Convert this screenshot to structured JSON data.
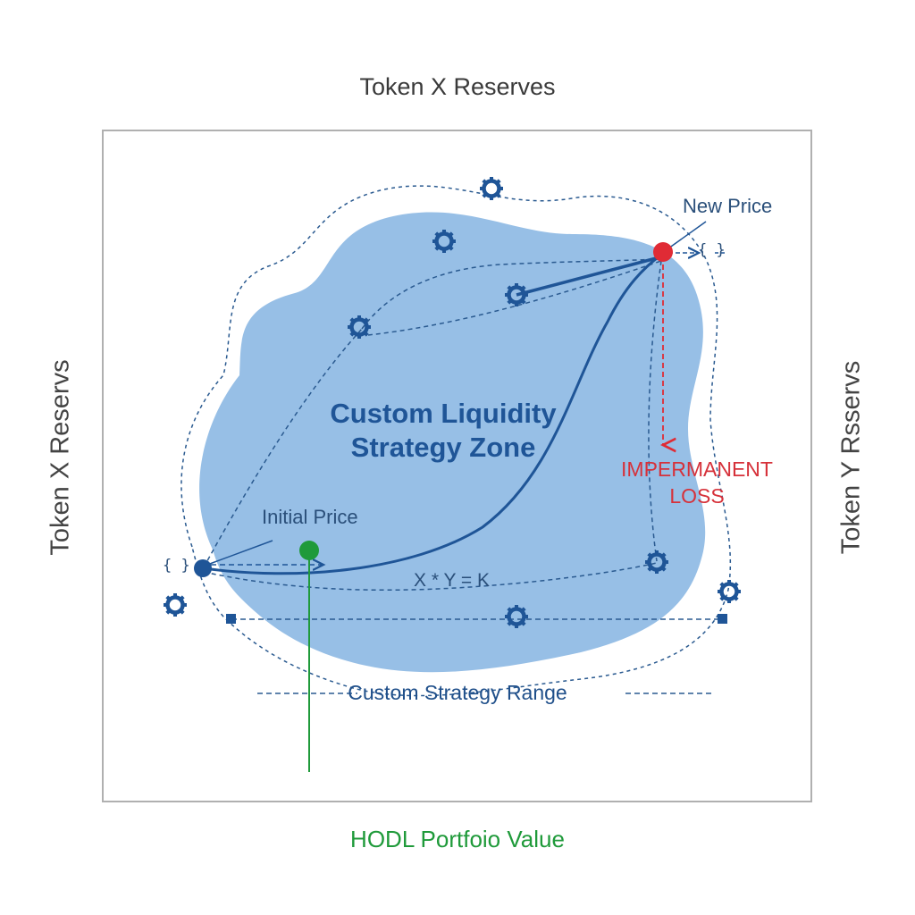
{
  "labels": {
    "top": "Token X Reserves",
    "left": "Token  X Reservs",
    "right": "Token  Y Rsservs",
    "bottom": "HODL Portfoio Value"
  },
  "zone": {
    "title": "Custom Liquidity Strategy Zone"
  },
  "annotations": {
    "new_price": "New Price",
    "initial_price": "Initial Price",
    "formula": "X * Y = K",
    "range": "Custom Strategy Range",
    "impermanent_loss": "IMPERMANENT LOSS",
    "brace": "{ }"
  },
  "colors": {
    "zone_fill": "#97bfe6",
    "curve": "#1f5597",
    "new_price_marker": "#e02b35",
    "initial_price_marker": "#1f5597",
    "hodl": "#1f9a3a",
    "impermanent_loss": "#d6313a",
    "frame": "#b0b0b0",
    "gear": "#1f5597"
  },
  "icons": [
    "gear-icon",
    "brace-icon",
    "range-endpoint-icon"
  ]
}
